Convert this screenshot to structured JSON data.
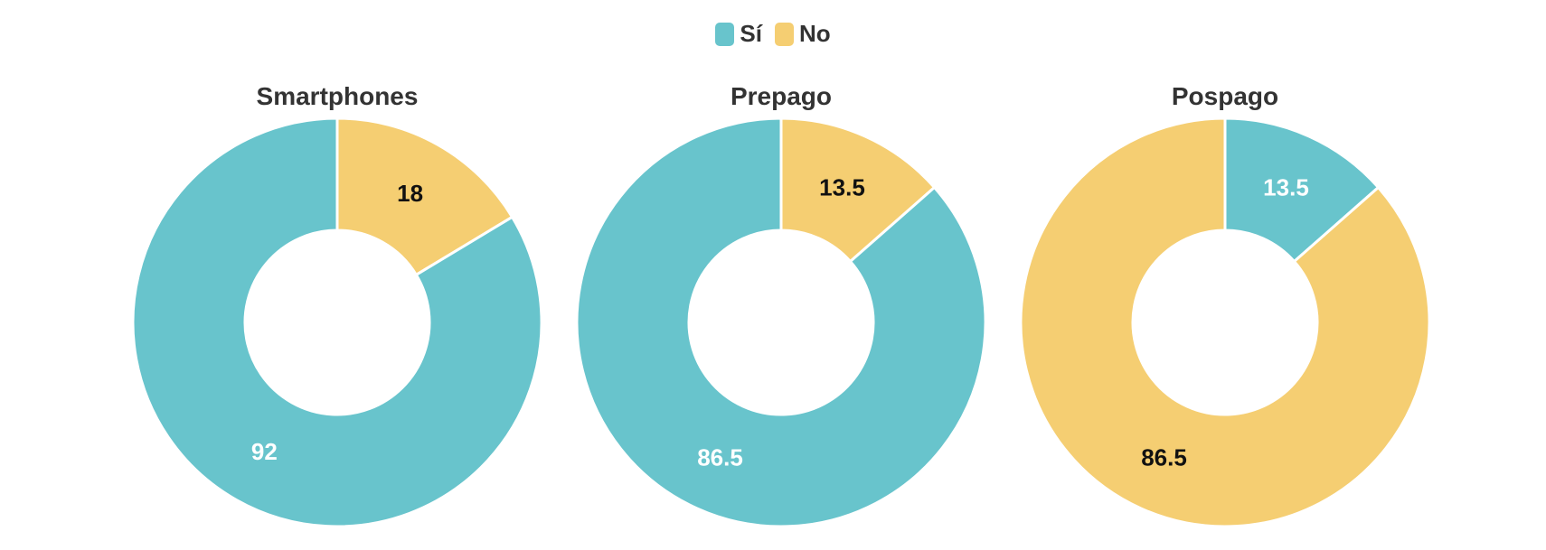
{
  "chart_data": {
    "type": "pie",
    "variant": "donut",
    "legend": {
      "placement": "top-center",
      "entries": [
        {
          "name": "Sí",
          "color": "#68C4CC"
        },
        {
          "name": "No",
          "color": "#F5CE72"
        }
      ]
    },
    "charts": [
      {
        "title": "Smartphones",
        "slices": [
          {
            "name": "No",
            "value": 18,
            "label": "18",
            "color": "#F5CE72",
            "label_color": "#111111"
          },
          {
            "name": "Sí",
            "value": 92,
            "label": "92",
            "color": "#68C4CC",
            "label_color": "#ffffff"
          }
        ]
      },
      {
        "title": "Prepago",
        "slices": [
          {
            "name": "No",
            "value": 13.5,
            "label": "13.5",
            "color": "#F5CE72",
            "label_color": "#111111"
          },
          {
            "name": "Sí",
            "value": 86.5,
            "label": "86.5",
            "color": "#68C4CC",
            "label_color": "#ffffff"
          }
        ]
      },
      {
        "title": "Pospago",
        "slices": [
          {
            "name": "Sí",
            "value": 13.5,
            "label": "13.5",
            "color": "#68C4CC",
            "label_color": "#ffffff"
          },
          {
            "name": "No",
            "value": 86.5,
            "label": "86.5",
            "color": "#F5CE72",
            "label_color": "#111111"
          }
        ]
      }
    ]
  }
}
